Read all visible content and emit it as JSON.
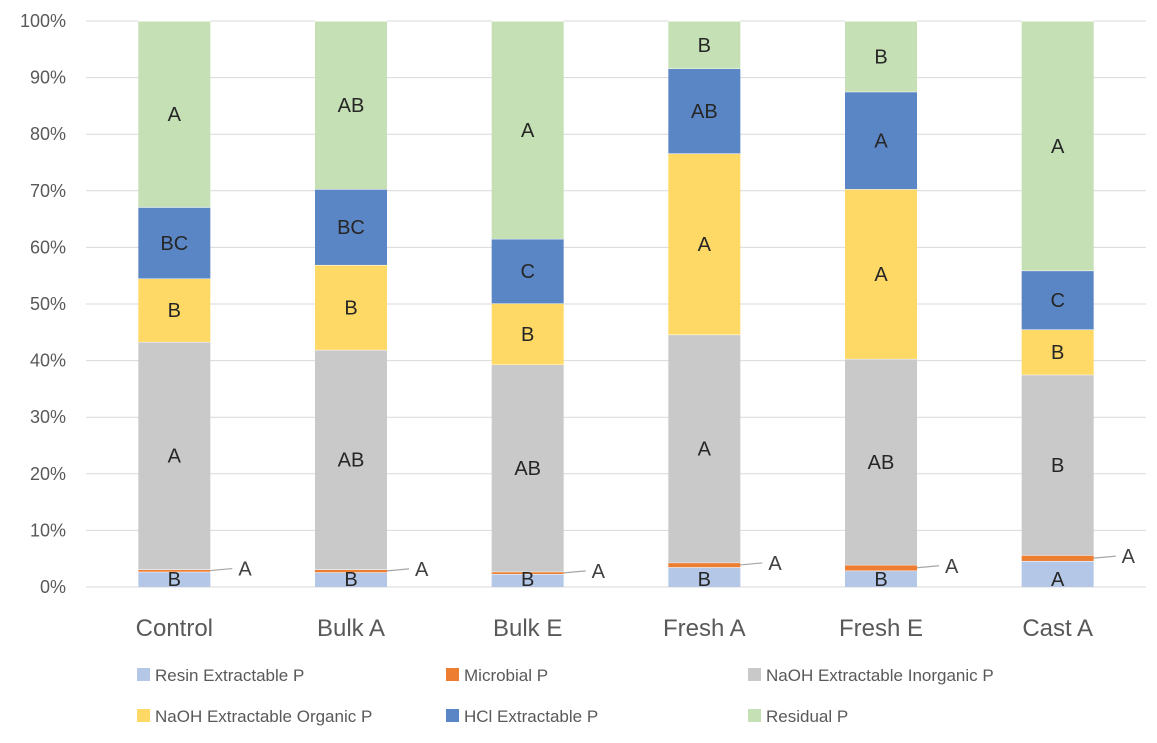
{
  "chart_data": {
    "type": "bar",
    "stacked": true,
    "normalized_percent": true,
    "title": "",
    "xlabel": "",
    "ylabel": "",
    "ylim": [
      0,
      100
    ],
    "y_ticks": [
      "0%",
      "10%",
      "20%",
      "30%",
      "40%",
      "50%",
      "60%",
      "70%",
      "80%",
      "90%",
      "100%"
    ],
    "grid": true,
    "legend_position": "bottom",
    "categories": [
      "Control",
      "Bulk A",
      "Bulk E",
      "Fresh A",
      "Fresh E",
      "Cast A"
    ],
    "series": [
      {
        "name": "Resin Extractable P",
        "color": "#b4c7e7",
        "values": [
          2.7,
          2.6,
          2.3,
          3.5,
          2.9,
          4.6
        ],
        "labels": [
          "B",
          "B",
          "B",
          "B",
          "B",
          "A"
        ]
      },
      {
        "name": "Microbial P",
        "color": "#ed7d31",
        "values": [
          0.4,
          0.5,
          0.4,
          0.8,
          1.0,
          1.0
        ],
        "labels": [
          "A",
          "A",
          "A",
          "A",
          "A",
          "A"
        ]
      },
      {
        "name": "NaOH Extractable Inorganic P",
        "color": "#c9c9c9",
        "values": [
          40.2,
          38.8,
          36.6,
          40.3,
          36.4,
          31.9
        ],
        "labels": [
          "A",
          "AB",
          "AB",
          "A",
          "AB",
          "B"
        ]
      },
      {
        "name": "NaOH Extractable Organic P",
        "color": "#ffd966",
        "values": [
          11.2,
          15.0,
          10.8,
          32.0,
          30.0,
          8.0
        ],
        "labels": [
          "B",
          "B",
          "B",
          "A",
          "A",
          "B"
        ]
      },
      {
        "name": "HCl Extractable P",
        "color": "#5b86c6",
        "values": [
          12.6,
          13.4,
          11.4,
          15.0,
          17.2,
          10.4
        ],
        "labels": [
          "BC",
          "BC",
          "C",
          "AB",
          "A",
          "C"
        ]
      },
      {
        "name": "Residual P",
        "color": "#c5e0b4",
        "values": [
          32.9,
          29.7,
          38.5,
          8.4,
          12.5,
          44.1
        ],
        "labels": [
          "A",
          "AB",
          "A",
          "B",
          "B",
          "A"
        ]
      }
    ]
  }
}
